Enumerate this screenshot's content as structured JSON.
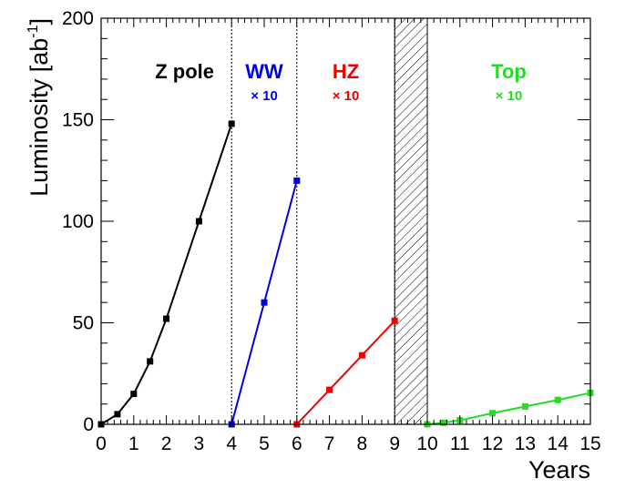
{
  "chart_data": {
    "type": "line",
    "xlabel": "Years",
    "ylabel": "Luminosity [ab",
    "ylabel_sup": "-1",
    "ylabel_close": "]",
    "xlim": [
      0,
      15
    ],
    "ylim": [
      0,
      200
    ],
    "x_ticks": [
      0,
      1,
      2,
      3,
      4,
      5,
      6,
      7,
      8,
      9,
      10,
      11,
      12,
      13,
      14,
      15
    ],
    "y_ticks": [
      0,
      50,
      100,
      150,
      200
    ],
    "dividers": [
      4,
      6,
      9,
      10
    ],
    "hatched_region": [
      9,
      10
    ],
    "series": [
      {
        "name": "Z pole",
        "color": "#000000",
        "points": [
          [
            0,
            0
          ],
          [
            0.5,
            5
          ],
          [
            1,
            15
          ],
          [
            1.5,
            31
          ],
          [
            2,
            52
          ],
          [
            3,
            100
          ],
          [
            4,
            148
          ]
        ]
      },
      {
        "name": "WW",
        "multiplier": "× 10",
        "color": "#0000ee",
        "points": [
          [
            4,
            0
          ],
          [
            5,
            60
          ],
          [
            6,
            120
          ]
        ]
      },
      {
        "name": "HZ",
        "multiplier": "× 10",
        "color": "#ee0000",
        "points": [
          [
            6,
            0
          ],
          [
            7,
            17
          ],
          [
            8,
            34
          ],
          [
            9,
            51
          ]
        ]
      },
      {
        "name": "Top",
        "multiplier": "× 10",
        "color": "#22dd22",
        "points": [
          [
            10,
            0
          ],
          [
            10.5,
            0.8
          ],
          [
            11,
            2
          ],
          [
            12,
            5.5
          ],
          [
            13,
            8.8
          ],
          [
            14,
            12
          ],
          [
            15,
            15.5
          ]
        ]
      }
    ]
  }
}
